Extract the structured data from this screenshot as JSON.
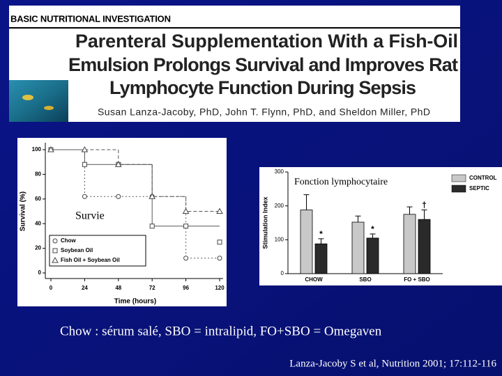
{
  "header": {
    "banner": "BASIC NUTRITIONAL INVESTIGATION",
    "title_lines": [
      "Parenteral Supplementation With a Fish-Oil",
      "Emulsion Prolongs Survival and Improves Rat",
      "Lymphocyte Function During Sepsis"
    ],
    "authors": "Susan Lanza-Jacoby, PhD, John T. Flynn, PhD, and Sheldon Miller, PhD"
  },
  "chart_data": [
    {
      "type": "line",
      "step": true,
      "overlay_label": "Survie",
      "x": [
        0,
        24,
        48,
        72,
        96,
        120
      ],
      "xlim": [
        0,
        120
      ],
      "xticks": [
        0,
        24,
        48,
        72,
        96,
        120
      ],
      "ylim": [
        0,
        100
      ],
      "yticks": [
        0,
        20,
        40,
        60,
        80,
        100
      ],
      "xlabel": "Time (hours)",
      "ylabel": "Survival (%)",
      "legend": "lower-left",
      "series": [
        {
          "name": "Chow",
          "marker": "circle",
          "dash": "2,3",
          "color": "#555555",
          "values": [
            100,
            62,
            62,
            62,
            12,
            12
          ]
        },
        {
          "name": "Soybean Oil",
          "marker": "square",
          "dash": "none",
          "color": "#555555",
          "values": [
            100,
            88,
            88,
            38,
            38,
            25
          ]
        },
        {
          "name": "Fish Oil + Soybean Oil",
          "marker": "triangle",
          "dash": "5,3",
          "color": "#555555",
          "values": [
            100,
            100,
            88,
            62,
            50,
            50
          ]
        }
      ]
    },
    {
      "type": "bar",
      "overlay_label": "Fonction lymphocytaire",
      "categories": [
        "CHOW",
        "SBO",
        "FO + SBO"
      ],
      "ylim": [
        0,
        300
      ],
      "yticks": [
        0,
        100,
        200,
        300
      ],
      "ylabel": "Stimulation Index",
      "legend": "upper-right",
      "series": [
        {
          "name": "CONTROL",
          "color": "#c8c8c8",
          "values": [
            188,
            152,
            175
          ],
          "errors": [
            45,
            18,
            22
          ]
        },
        {
          "name": "SEPTIC",
          "color": "#2a2a2a",
          "values": [
            88,
            105,
            160
          ],
          "errors": [
            15,
            12,
            28
          ],
          "markers": [
            "*",
            "*",
            "†"
          ]
        }
      ]
    }
  ],
  "caption": "Chow : sérum salé, SBO = intralipid, FO+SBO = Omegaven",
  "citation": "Lanza-Jacoby S et al, Nutrition 2001; 17:112-116"
}
